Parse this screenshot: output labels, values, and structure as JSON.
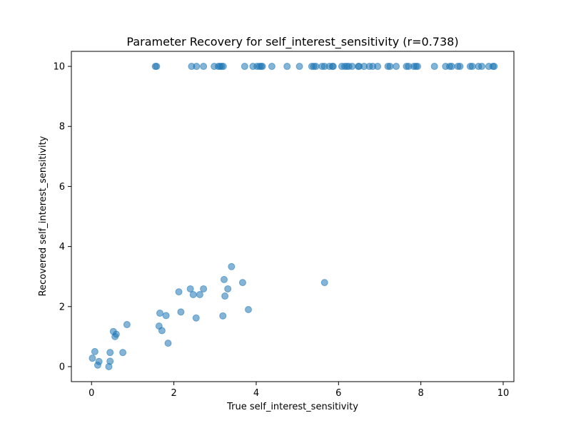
{
  "chart_data": {
    "type": "scatter",
    "title": "Parameter Recovery for self_interest_sensitivity (r=0.738)",
    "xlabel": "True self_interest_sensitivity",
    "ylabel": "Recovered self_interest_sensitivity",
    "xlim": [
      -0.49,
      10.26
    ],
    "ylim": [
      -0.5,
      10.5
    ],
    "xticks": [
      0,
      2,
      4,
      6,
      8,
      10
    ],
    "yticks": [
      0,
      2,
      4,
      6,
      8,
      10
    ],
    "xtick_labels": [
      "0",
      "2",
      "4",
      "6",
      "8",
      "10"
    ],
    "ytick_labels": [
      "0",
      "2",
      "4",
      "6",
      "8",
      "10"
    ],
    "grid": false,
    "marker_color": "#1f77b4",
    "marker_alpha": 0.55,
    "points": [
      {
        "x": 0.02,
        "y": 0.28
      },
      {
        "x": 0.08,
        "y": 0.5
      },
      {
        "x": 0.15,
        "y": 0.05
      },
      {
        "x": 0.18,
        "y": 0.17
      },
      {
        "x": 0.42,
        "y": 0.0
      },
      {
        "x": 0.45,
        "y": 0.18
      },
      {
        "x": 0.45,
        "y": 0.47
      },
      {
        "x": 0.53,
        "y": 1.17
      },
      {
        "x": 0.57,
        "y": 1.0
      },
      {
        "x": 0.6,
        "y": 1.08
      },
      {
        "x": 0.76,
        "y": 0.47
      },
      {
        "x": 0.86,
        "y": 1.4
      },
      {
        "x": 1.64,
        "y": 1.35
      },
      {
        "x": 1.66,
        "y": 1.78
      },
      {
        "x": 1.71,
        "y": 1.2
      },
      {
        "x": 1.81,
        "y": 1.7
      },
      {
        "x": 1.86,
        "y": 0.78
      },
      {
        "x": 2.12,
        "y": 2.49
      },
      {
        "x": 2.17,
        "y": 1.82
      },
      {
        "x": 2.4,
        "y": 2.59
      },
      {
        "x": 2.47,
        "y": 2.4
      },
      {
        "x": 2.54,
        "y": 1.62
      },
      {
        "x": 2.63,
        "y": 2.4
      },
      {
        "x": 2.72,
        "y": 2.59
      },
      {
        "x": 3.19,
        "y": 1.69
      },
      {
        "x": 3.22,
        "y": 2.9
      },
      {
        "x": 3.24,
        "y": 2.35
      },
      {
        "x": 3.31,
        "y": 2.59
      },
      {
        "x": 3.4,
        "y": 3.33
      },
      {
        "x": 3.67,
        "y": 2.8
      },
      {
        "x": 3.81,
        "y": 1.9
      },
      {
        "x": 5.66,
        "y": 2.8
      },
      {
        "x": 1.55,
        "y": 10
      },
      {
        "x": 1.58,
        "y": 10
      },
      {
        "x": 2.43,
        "y": 10
      },
      {
        "x": 2.55,
        "y": 10
      },
      {
        "x": 2.72,
        "y": 10
      },
      {
        "x": 2.98,
        "y": 10
      },
      {
        "x": 3.08,
        "y": 10
      },
      {
        "x": 3.12,
        "y": 10
      },
      {
        "x": 3.16,
        "y": 10
      },
      {
        "x": 3.2,
        "y": 10
      },
      {
        "x": 3.72,
        "y": 10
      },
      {
        "x": 3.92,
        "y": 10
      },
      {
        "x": 4.02,
        "y": 10
      },
      {
        "x": 4.08,
        "y": 10
      },
      {
        "x": 4.12,
        "y": 10
      },
      {
        "x": 4.15,
        "y": 10
      },
      {
        "x": 4.38,
        "y": 10
      },
      {
        "x": 4.75,
        "y": 10
      },
      {
        "x": 5.05,
        "y": 10
      },
      {
        "x": 5.35,
        "y": 10
      },
      {
        "x": 5.4,
        "y": 10
      },
      {
        "x": 5.45,
        "y": 10
      },
      {
        "x": 5.6,
        "y": 10
      },
      {
        "x": 5.66,
        "y": 10
      },
      {
        "x": 5.78,
        "y": 10
      },
      {
        "x": 5.85,
        "y": 10
      },
      {
        "x": 5.87,
        "y": 10
      },
      {
        "x": 6.08,
        "y": 10
      },
      {
        "x": 6.15,
        "y": 10
      },
      {
        "x": 6.2,
        "y": 10
      },
      {
        "x": 6.25,
        "y": 10
      },
      {
        "x": 6.33,
        "y": 10
      },
      {
        "x": 6.48,
        "y": 10
      },
      {
        "x": 6.5,
        "y": 10
      },
      {
        "x": 6.62,
        "y": 10
      },
      {
        "x": 6.75,
        "y": 10
      },
      {
        "x": 6.83,
        "y": 10
      },
      {
        "x": 6.95,
        "y": 10
      },
      {
        "x": 7.2,
        "y": 10
      },
      {
        "x": 7.25,
        "y": 10
      },
      {
        "x": 7.4,
        "y": 10
      },
      {
        "x": 7.65,
        "y": 10
      },
      {
        "x": 7.7,
        "y": 10
      },
      {
        "x": 7.83,
        "y": 10
      },
      {
        "x": 7.88,
        "y": 10
      },
      {
        "x": 7.92,
        "y": 10
      },
      {
        "x": 8.33,
        "y": 10
      },
      {
        "x": 8.6,
        "y": 10
      },
      {
        "x": 8.7,
        "y": 10
      },
      {
        "x": 8.75,
        "y": 10
      },
      {
        "x": 8.9,
        "y": 10
      },
      {
        "x": 8.95,
        "y": 10
      },
      {
        "x": 9.2,
        "y": 10
      },
      {
        "x": 9.25,
        "y": 10
      },
      {
        "x": 9.4,
        "y": 10
      },
      {
        "x": 9.48,
        "y": 10
      },
      {
        "x": 9.65,
        "y": 10
      },
      {
        "x": 9.75,
        "y": 10
      },
      {
        "x": 9.78,
        "y": 10
      }
    ]
  }
}
